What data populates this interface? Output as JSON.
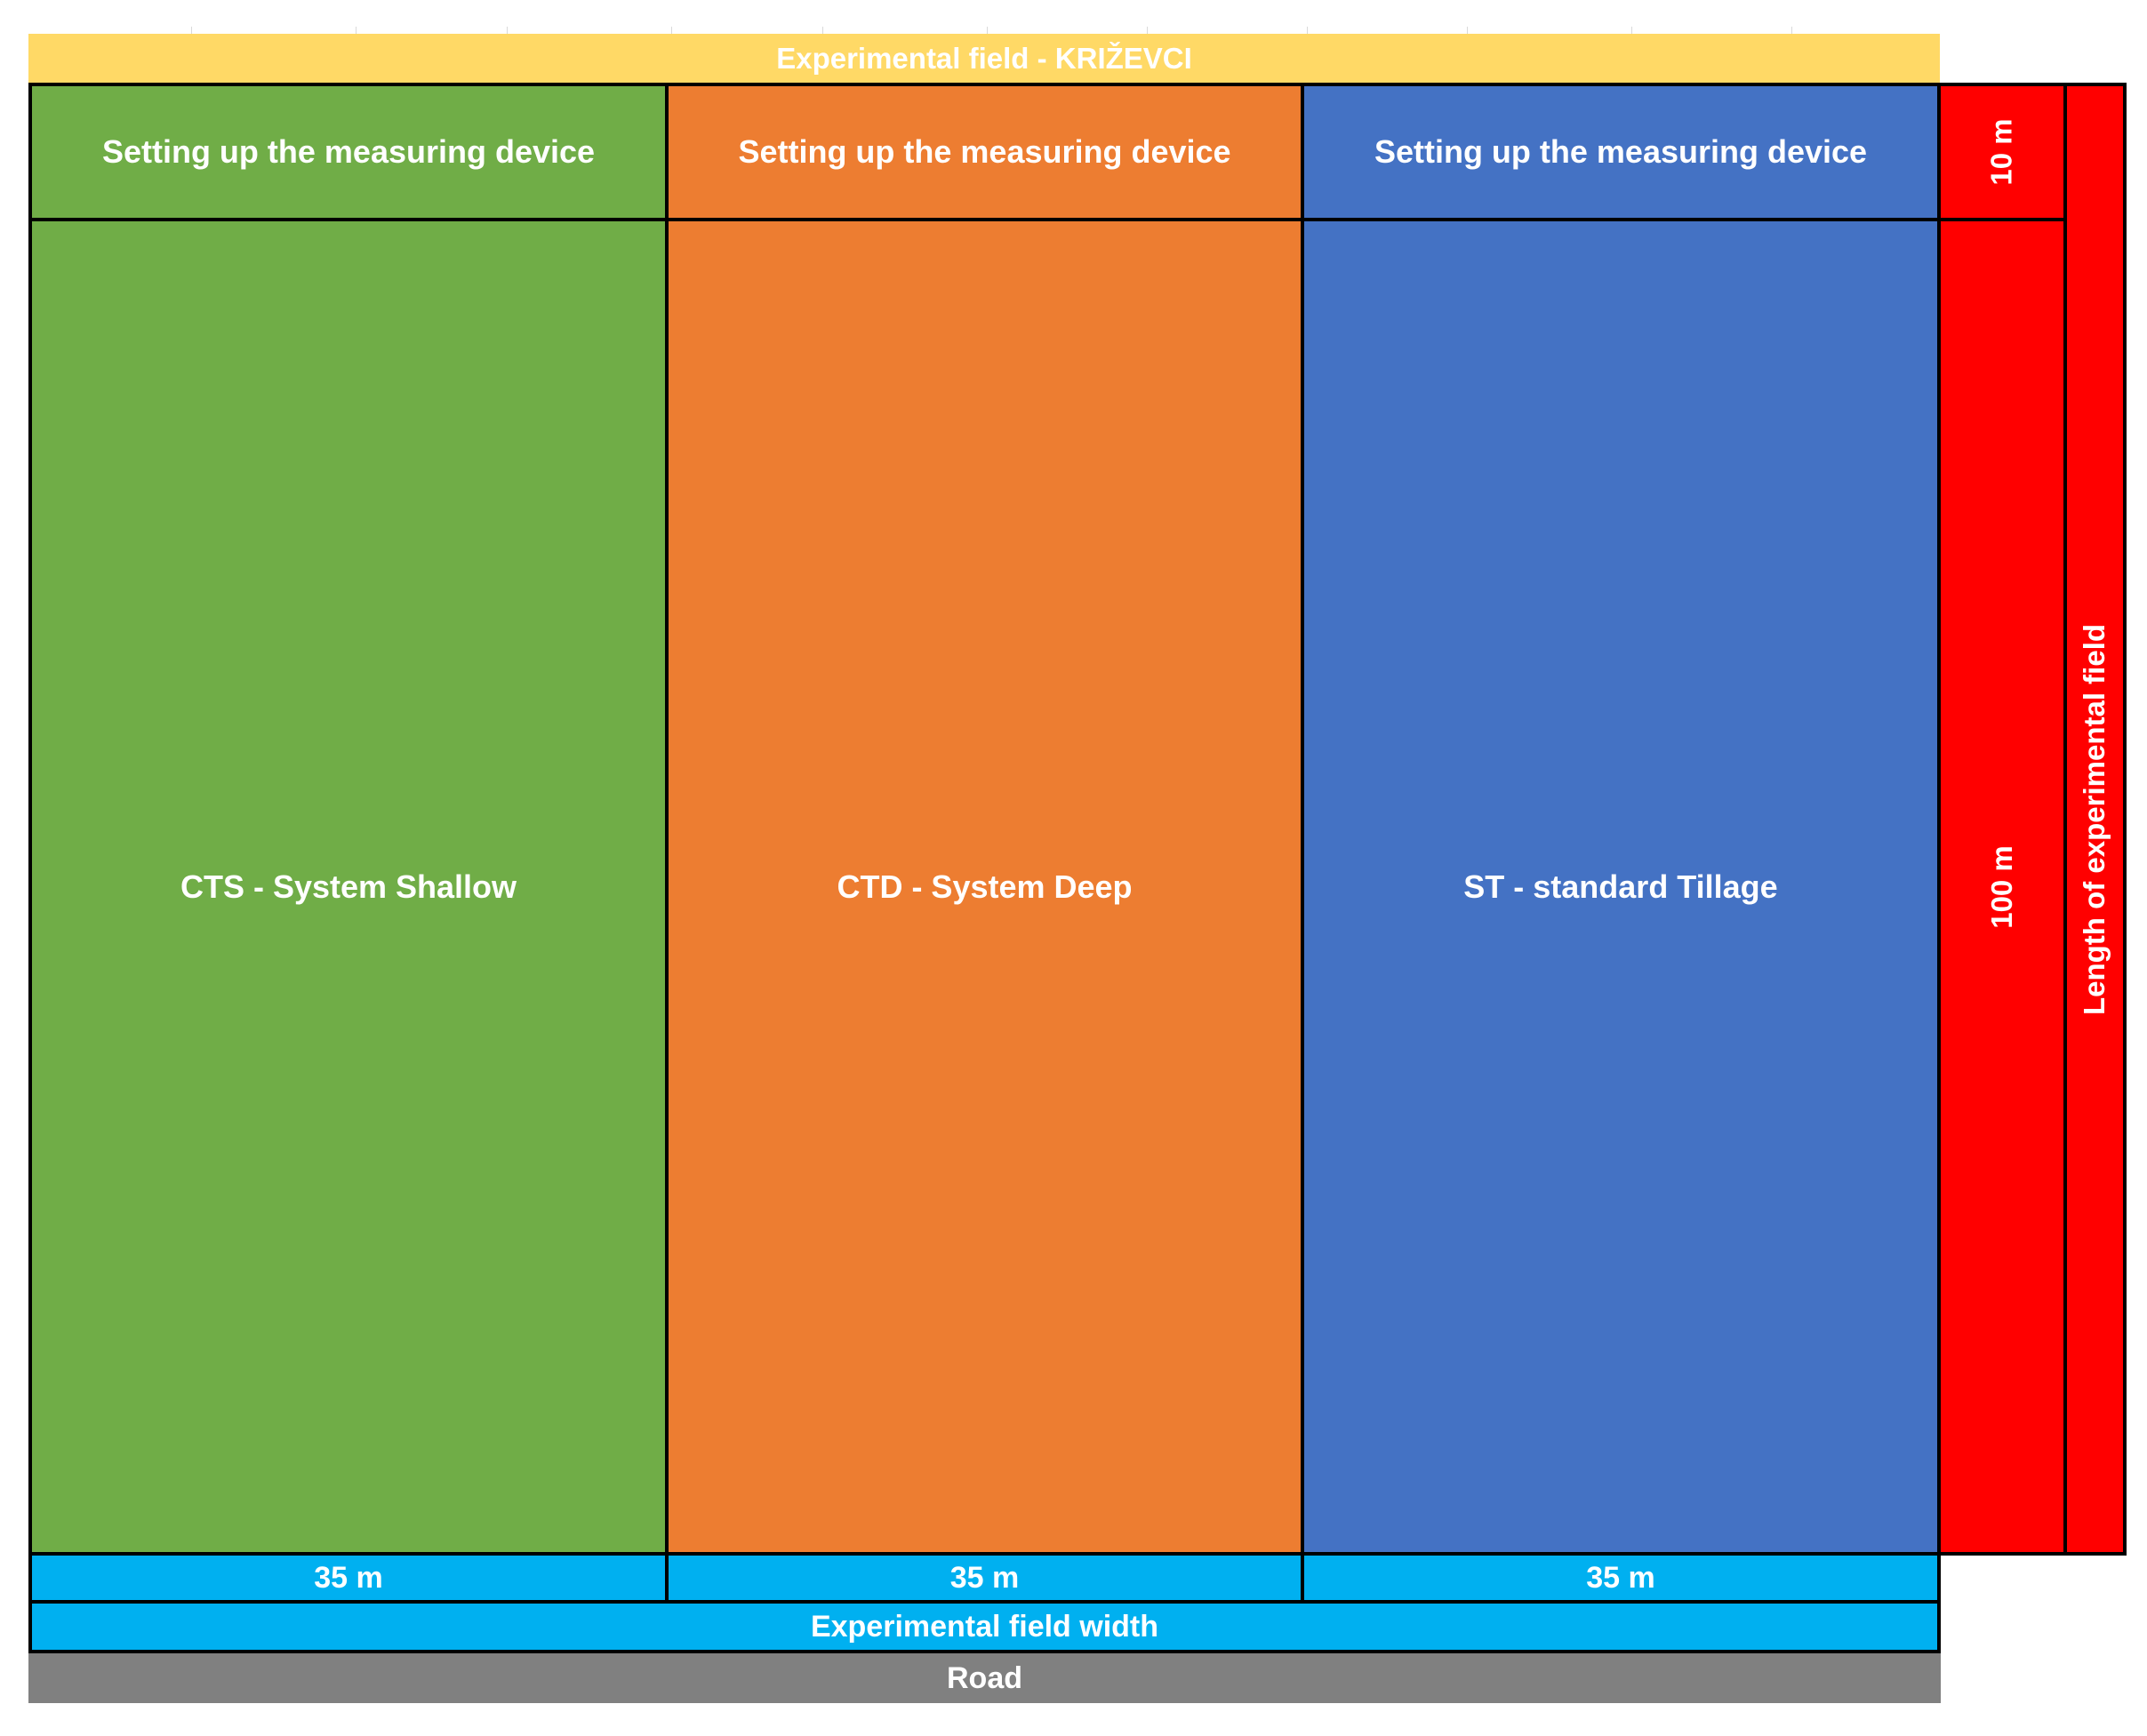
{
  "title": "Experimental field - KRIŽEVCI",
  "columns": [
    {
      "header": "Setting up the measuring device",
      "treatment": "CTS - System Shallow",
      "width_label": "35 m",
      "color": "#70AD47"
    },
    {
      "header": "Setting up the measuring device",
      "treatment": "CTD - System Deep",
      "width_label": "35 m",
      "color": "#ED7D31"
    },
    {
      "header": "Setting up the measuring device",
      "treatment": "ST - standard Tillage",
      "width_label": "35 m",
      "color": "#4472C4"
    }
  ],
  "side": {
    "top_length": "10 m",
    "main_length": "100 m",
    "total_label": "Length of experimental field",
    "color": "#FF0000"
  },
  "bottom": {
    "width_label": "Experimental field width",
    "road_label": "Road",
    "width_color": "#00B0F0",
    "road_color": "#808080"
  },
  "title_color": "#FFD966"
}
